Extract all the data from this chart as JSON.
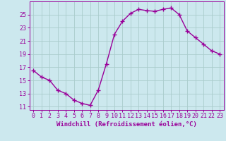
{
  "x": [
    0,
    1,
    2,
    3,
    4,
    5,
    6,
    7,
    8,
    9,
    10,
    11,
    12,
    13,
    14,
    15,
    16,
    17,
    18,
    19,
    20,
    21,
    22,
    23
  ],
  "y": [
    16.5,
    15.5,
    15.0,
    13.5,
    13.0,
    12.0,
    11.5,
    11.2,
    13.5,
    17.5,
    22.0,
    24.0,
    25.2,
    25.8,
    25.6,
    25.5,
    25.8,
    26.0,
    25.0,
    22.5,
    21.5,
    20.5,
    19.5,
    19.0
  ],
  "line_color": "#990099",
  "marker": "+",
  "markersize": 4,
  "linewidth": 1.0,
  "xlabel": "Windchill (Refroidissement éolien,°C)",
  "xlim": [
    -0.5,
    23.5
  ],
  "ylim": [
    10.5,
    27
  ],
  "yticks": [
    11,
    13,
    15,
    17,
    19,
    21,
    23,
    25
  ],
  "xticks": [
    0,
    1,
    2,
    3,
    4,
    5,
    6,
    7,
    8,
    9,
    10,
    11,
    12,
    13,
    14,
    15,
    16,
    17,
    18,
    19,
    20,
    21,
    22,
    23
  ],
  "bg_color": "#cce8ee",
  "grid_color": "#aacccc",
  "xlabel_fontsize": 6.5,
  "tick_fontsize": 6,
  "label_color": "#990099"
}
